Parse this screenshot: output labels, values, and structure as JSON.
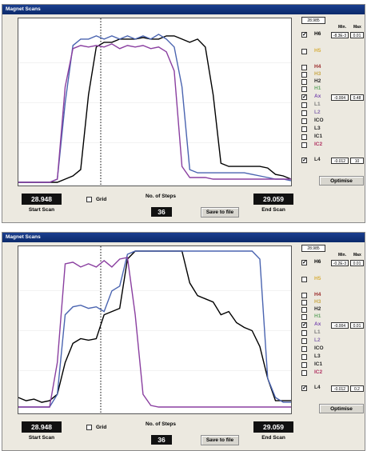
{
  "panels": [
    {
      "title": "Magnet Scans",
      "field_value": "28.985",
      "min_label": "Min.",
      "max_label": "Max",
      "channels": [
        {
          "label": "H6",
          "checked": true,
          "color": "#000000",
          "min": "-8.3E-3",
          "max": "0.01"
        },
        {
          "label": "H5",
          "checked": false,
          "color": "#d8b040"
        },
        {
          "label": "H4",
          "checked": false,
          "color": "#9b2c2c"
        },
        {
          "label": "H3",
          "checked": false,
          "color": "#c9a84a"
        },
        {
          "label": "H2",
          "checked": false,
          "color": "#2a2a2a"
        },
        {
          "label": "H1",
          "checked": false,
          "color": "#6aa86a"
        },
        {
          "label": "Ax",
          "checked": true,
          "color": "#7d4fb0",
          "min": "-0.004",
          "max": "0.48"
        },
        {
          "label": "L1",
          "checked": false,
          "color": "#7a7a7a"
        },
        {
          "label": "L2",
          "checked": false,
          "color": "#8a6fb0"
        },
        {
          "label": "ICO",
          "checked": false,
          "color": "#2a2a2a"
        },
        {
          "label": "L3",
          "checked": false,
          "color": "#2a2a2a"
        },
        {
          "label": "IC1",
          "checked": false,
          "color": "#2a2a2a"
        },
        {
          "label": "IC2",
          "checked": false,
          "color": "#b03060"
        },
        {
          "label": "L4",
          "checked": true,
          "color": "#2a2a2a",
          "min": "-0.012",
          "max": "10"
        }
      ],
      "optimise_label": "Optimise",
      "start_scan_value": "28.948",
      "start_scan_label": "Start Scan",
      "grid_label": "Grid",
      "steps_label": "No. of Steps",
      "steps_value": "36",
      "save_label": "Save to file",
      "end_scan_value": "29.059",
      "end_scan_label": "End Scan",
      "chart_data": {
        "type": "line",
        "series": [
          {
            "color": "#000000",
            "y": [
              0.0,
              0.0,
              0.0,
              0.0,
              0.0,
              0.0,
              0.02,
              0.04,
              0.08,
              0.55,
              0.85,
              0.88,
              0.88,
              0.9,
              0.9,
              0.9,
              0.91,
              0.9,
              0.9,
              0.92,
              0.92,
              0.9,
              0.88,
              0.9,
              0.85,
              0.55,
              0.12,
              0.1,
              0.1,
              0.1,
              0.1,
              0.1,
              0.09,
              0.05,
              0.04,
              0.02
            ]
          },
          {
            "color": "#4a64b0",
            "y": [
              0.0,
              0.0,
              0.0,
              0.0,
              0.0,
              0.02,
              0.5,
              0.86,
              0.9,
              0.9,
              0.92,
              0.9,
              0.92,
              0.9,
              0.92,
              0.9,
              0.92,
              0.9,
              0.93,
              0.9,
              0.85,
              0.6,
              0.08,
              0.06,
              0.06,
              0.06,
              0.06,
              0.06,
              0.06,
              0.06,
              0.05,
              0.04,
              0.03,
              0.02,
              0.02,
              0.01
            ]
          },
          {
            "color": "#8a3fa0",
            "y": [
              0.0,
              0.0,
              0.0,
              0.0,
              0.0,
              0.02,
              0.6,
              0.84,
              0.86,
              0.85,
              0.86,
              0.85,
              0.87,
              0.84,
              0.86,
              0.85,
              0.86,
              0.84,
              0.85,
              0.82,
              0.7,
              0.1,
              0.03,
              0.03,
              0.03,
              0.02,
              0.02,
              0.02,
              0.02,
              0.02,
              0.02,
              0.02,
              0.02,
              0.02,
              0.02,
              0.02
            ]
          }
        ],
        "grid": false
      }
    },
    {
      "title": "Magnet Scans",
      "field_value": "28.985",
      "min_label": "Min.",
      "max_label": "Max",
      "channels": [
        {
          "label": "H6",
          "checked": true,
          "color": "#000000",
          "min": "-0.2E-3",
          "max": "0.01"
        },
        {
          "label": "H5",
          "checked": false,
          "color": "#d8b040"
        },
        {
          "label": "H4",
          "checked": false,
          "color": "#9b2c2c"
        },
        {
          "label": "H3",
          "checked": false,
          "color": "#c9a84a"
        },
        {
          "label": "H2",
          "checked": false,
          "color": "#2a2a2a"
        },
        {
          "label": "H1",
          "checked": false,
          "color": "#6aa86a"
        },
        {
          "label": "Ax",
          "checked": true,
          "color": "#7d4fb0",
          "min": "-0.004",
          "max": "0.01"
        },
        {
          "label": "L1",
          "checked": false,
          "color": "#7a7a7a"
        },
        {
          "label": "L2",
          "checked": false,
          "color": "#8a6fb0"
        },
        {
          "label": "ICO",
          "checked": false,
          "color": "#2a2a2a"
        },
        {
          "label": "L3",
          "checked": false,
          "color": "#2a2a2a"
        },
        {
          "label": "IC1",
          "checked": false,
          "color": "#2a2a2a"
        },
        {
          "label": "IC2",
          "checked": false,
          "color": "#b03060"
        },
        {
          "label": "L4",
          "checked": true,
          "color": "#2a2a2a",
          "min": "-0.012",
          "max": "0.2"
        }
      ],
      "optimise_label": "Optimise",
      "start_scan_value": "28.948",
      "start_scan_label": "Start Scan",
      "grid_label": "Grid",
      "steps_label": "No. of Steps",
      "steps_value": "36",
      "save_label": "Save to file",
      "end_scan_value": "29.059",
      "end_scan_label": "End Scan",
      "chart_data": {
        "type": "line",
        "series": [
          {
            "color": "#000000",
            "y": [
              0.08,
              0.06,
              0.07,
              0.05,
              0.06,
              0.1,
              0.3,
              0.42,
              0.45,
              0.44,
              0.45,
              0.6,
              0.62,
              0.64,
              0.95,
              1.0,
              1.0,
              1.0,
              1.0,
              1.0,
              1.0,
              1.0,
              0.8,
              0.72,
              0.7,
              0.68,
              0.6,
              0.62,
              0.55,
              0.52,
              0.5,
              0.4,
              0.2,
              0.06,
              0.06,
              0.06
            ]
          },
          {
            "color": "#4a64b0",
            "y": [
              0.02,
              0.02,
              0.02,
              0.02,
              0.02,
              0.1,
              0.6,
              0.65,
              0.66,
              0.64,
              0.65,
              0.62,
              0.75,
              0.78,
              0.98,
              1.0,
              1.0,
              1.0,
              1.0,
              1.0,
              1.0,
              1.0,
              1.0,
              1.0,
              1.0,
              1.0,
              1.0,
              1.0,
              1.0,
              1.0,
              1.0,
              0.95,
              0.2,
              0.08,
              0.05,
              0.05
            ]
          },
          {
            "color": "#8a3fa0",
            "y": [
              0.02,
              0.02,
              0.02,
              0.02,
              0.02,
              0.3,
              0.92,
              0.93,
              0.9,
              0.92,
              0.9,
              0.94,
              0.9,
              0.95,
              0.96,
              0.6,
              0.1,
              0.03,
              0.02,
              0.02,
              0.02,
              0.02,
              0.02,
              0.02,
              0.02,
              0.02,
              0.02,
              0.02,
              0.02,
              0.02,
              0.02,
              0.02,
              0.02,
              0.02,
              0.02,
              0.02
            ]
          }
        ],
        "grid": false
      }
    }
  ]
}
